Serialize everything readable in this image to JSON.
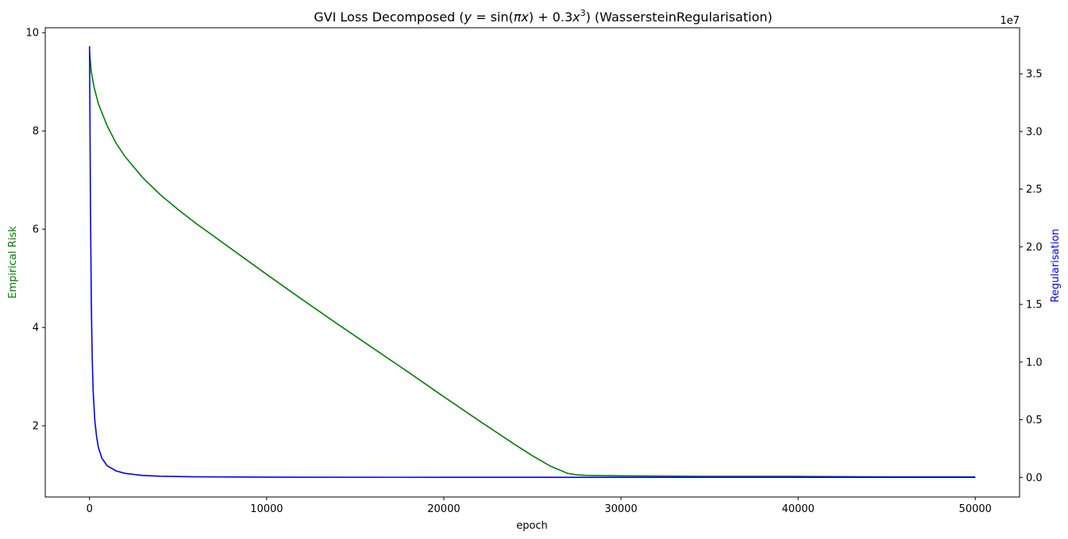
{
  "chart_data": {
    "type": "line",
    "title": "GVI Loss Decomposed ($y=\\sin(\\pi x)+0.3x^3$) (WassersteinRegularisation)",
    "title_parts": {
      "prefix": "GVI Loss Decomposed (",
      "eq_y": "y",
      "eq_eq": " = sin(",
      "eq_pi": "π",
      "eq_x1": "x",
      "eq_mid": ") + 0.3",
      "eq_x2": "x",
      "eq_exp": "3",
      "suffix": ") (WassersteinRegularisation)"
    },
    "xlabel": "epoch",
    "ylabel_left": "Empirical Risk",
    "ylabel_right": "Regularisation",
    "right_axis_offset_text": "1e7",
    "xlim": [
      -2500,
      52500
    ],
    "ylim_left": [
      0.55,
      10.1
    ],
    "ylim_right": [
      -1700000,
      39000000
    ],
    "x_ticks": [
      0,
      10000,
      20000,
      30000,
      40000,
      50000
    ],
    "x_tick_labels": [
      "0",
      "10000",
      "20000",
      "30000",
      "40000",
      "50000"
    ],
    "y_left_ticks": [
      2,
      4,
      6,
      8,
      10
    ],
    "y_left_tick_labels": [
      "2",
      "4",
      "6",
      "8",
      "10"
    ],
    "y_right_ticks": [
      0,
      5000000,
      10000000,
      15000000,
      20000000,
      25000000,
      30000000,
      35000000
    ],
    "y_right_tick_labels": [
      "0.0",
      "0.5",
      "1.0",
      "1.5",
      "2.0",
      "2.5",
      "3.0",
      "3.5"
    ],
    "grid": false,
    "colors": {
      "empirical_risk": "#008000",
      "regularisation": "#0000ff"
    },
    "series": [
      {
        "axis": "left",
        "color": "#008000",
        "x": [
          0,
          100,
          250,
          500,
          1000,
          1500,
          2000,
          3000,
          4000,
          5000,
          6000,
          8000,
          10000,
          12000,
          14000,
          16000,
          18000,
          20000,
          22000,
          24000,
          25000,
          26000,
          27000,
          27500,
          28000,
          30000,
          35000,
          40000,
          45000,
          50000
        ],
        "values": [
          9.62,
          9.2,
          8.9,
          8.55,
          8.1,
          7.75,
          7.48,
          7.05,
          6.7,
          6.4,
          6.12,
          5.6,
          5.08,
          4.57,
          4.07,
          3.58,
          3.09,
          2.59,
          2.1,
          1.62,
          1.39,
          1.18,
          1.03,
          1.0,
          0.99,
          0.98,
          0.97,
          0.97,
          0.96,
          0.96
        ]
      },
      {
        "axis": "right",
        "color": "#0000ff",
        "x": [
          0,
          20,
          50,
          100,
          150,
          200,
          300,
          400,
          500,
          700,
          1000,
          1500,
          2000,
          3000,
          4000,
          6000,
          10000,
          20000,
          30000,
          40000,
          50000
        ],
        "values": [
          37400000,
          32000000,
          24000000,
          15000000,
          10500000,
          7600000,
          4900000,
          3500000,
          2600000,
          1650000,
          1000000,
          560000,
          350000,
          170000,
          100000,
          50000,
          20000,
          8000,
          5000,
          3000,
          2000
        ]
      }
    ]
  }
}
